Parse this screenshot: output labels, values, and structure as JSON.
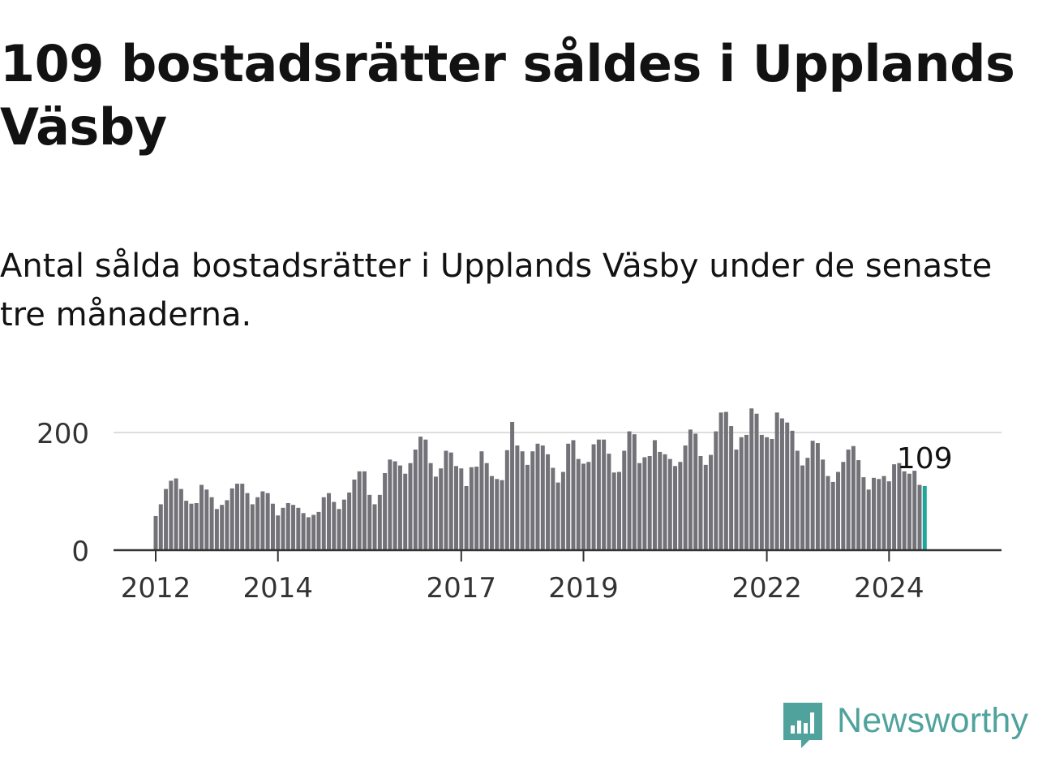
{
  "title": "109 bostadsrätter såldes i Upplands Väsby",
  "subtitle": "Antal sålda bostadsrätter i Upplands Väsby under de senaste tre månaderna.",
  "brand": {
    "name": "Newsworthy",
    "logo_icon": "bar-chart-speech-bubble-icon",
    "color": "#4fa39c"
  },
  "colors": {
    "bar": "#737278",
    "highlight": "#20a59b",
    "grid": "#dddddd",
    "axis": "#333333",
    "text": "#121212"
  },
  "chart_data": {
    "type": "bar",
    "title": "Antal sålda bostadsrätter i Upplands Väsby under de senaste tre månaderna.",
    "xlabel": "",
    "ylabel": "",
    "ylim": [
      0,
      240
    ],
    "grid": true,
    "y_ticks": [
      0,
      200
    ],
    "x_tick_labels": [
      "2012",
      "2014",
      "2017",
      "2019",
      "2022",
      "2024"
    ],
    "x_tick_months": [
      "2012-01",
      "2014-01",
      "2017-01",
      "2019-01",
      "2022-01",
      "2024-01"
    ],
    "first_month": "2012-01",
    "last_month": "2024-08",
    "highlight_label": "109",
    "series": [
      {
        "name": "Antal sålda bostadsrätter",
        "values": [
          58,
          78,
          104,
          118,
          122,
          104,
          84,
          79,
          80,
          111,
          103,
          90,
          70,
          77,
          85,
          105,
          113,
          113,
          97,
          78,
          90,
          100,
          97,
          79,
          59,
          72,
          80,
          77,
          72,
          63,
          56,
          60,
          65,
          90,
          97,
          82,
          70,
          86,
          98,
          120,
          134,
          134,
          94,
          78,
          94,
          131,
          154,
          151,
          144,
          130,
          148,
          171,
          193,
          188,
          148,
          125,
          139,
          169,
          166,
          143,
          139,
          109,
          141,
          142,
          168,
          148,
          126,
          121,
          119,
          170,
          218,
          178,
          168,
          145,
          168,
          181,
          178,
          163,
          140,
          115,
          133,
          181,
          187,
          155,
          147,
          150,
          180,
          188,
          188,
          164,
          132,
          133,
          169,
          202,
          197,
          148,
          158,
          160,
          187,
          167,
          163,
          155,
          143,
          150,
          178,
          205,
          198,
          160,
          145,
          162,
          202,
          234,
          235,
          211,
          171,
          192,
          196,
          241,
          232,
          196,
          192,
          189,
          234,
          224,
          217,
          203,
          169,
          144,
          157,
          186,
          182,
          154,
          126,
          116,
          133,
          150,
          171,
          177,
          153,
          124,
          103,
          123,
          121,
          126,
          117,
          146,
          148,
          134,
          130,
          135,
          111,
          109
        ]
      }
    ]
  }
}
